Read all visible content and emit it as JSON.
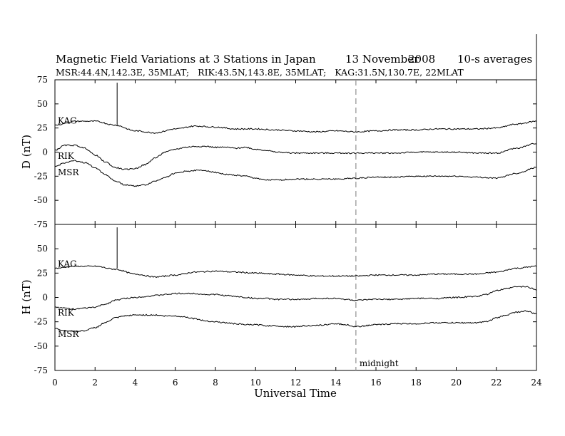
{
  "title": {
    "main": "Magnetic Field Variations at 3 Stations in Japan",
    "date_day_month": "13 November",
    "date_year": "2008",
    "averaging": "10-s averages",
    "stations_line": "MSR:44.4N,142.3E, 35MLAT;   RIK:43.5N,143.8E, 35MLAT;   KAG:31.5N,130.7E, 22MLAT"
  },
  "xlabel": "Universal Time",
  "midnight_label": "midnight",
  "midnight_ut": 15,
  "x_ticks": [
    0,
    2,
    4,
    6,
    8,
    10,
    12,
    14,
    16,
    18,
    20,
    22,
    24
  ],
  "chart_data": [
    {
      "type": "line",
      "panel": "D",
      "ylabel": "D (nT)",
      "xlim": [
        0,
        24
      ],
      "ylim": [
        -75,
        75
      ],
      "y_ticks": [
        75,
        50,
        25,
        0,
        -25,
        -50,
        -75
      ],
      "series": [
        {
          "name": "KAG",
          "x": [
            0,
            1,
            2,
            3,
            4,
            5,
            6,
            7,
            8,
            9,
            10,
            11,
            12,
            13,
            14,
            15,
            16,
            17,
            18,
            19,
            20,
            21,
            22,
            23,
            24
          ],
          "values": [
            28,
            32,
            32,
            28,
            22,
            20,
            24,
            27,
            26,
            24,
            24,
            23,
            22,
            21,
            22,
            21,
            22,
            23,
            23,
            24,
            24,
            24,
            25,
            29,
            32
          ]
        },
        {
          "name": "RIK",
          "x": [
            0,
            0.5,
            1,
            1.5,
            2,
            2.5,
            3,
            3.5,
            4,
            4.5,
            5,
            5.5,
            6,
            6.5,
            7,
            7.5,
            8,
            8.5,
            9,
            9.5,
            10,
            10.5,
            11,
            12,
            13,
            14,
            15,
            16,
            17,
            18,
            19,
            20,
            21,
            22,
            23,
            24
          ],
          "values": [
            2,
            7,
            7,
            4,
            -3,
            -10,
            -16,
            -18,
            -17,
            -13,
            -6,
            0,
            3,
            5,
            6,
            6,
            5,
            5,
            4,
            5,
            3,
            2,
            0,
            -1,
            -1,
            -1,
            -1,
            -1,
            -1,
            0,
            0,
            0,
            -1,
            -1,
            4,
            9
          ]
        },
        {
          "name": "MSR",
          "x": [
            0,
            0.5,
            1,
            1.5,
            2,
            2.5,
            3,
            3.5,
            4,
            4.5,
            5,
            5.5,
            6,
            6.5,
            7,
            7.5,
            8,
            8.5,
            9,
            9.5,
            10,
            10.5,
            11,
            12,
            13,
            14,
            15,
            16,
            17,
            18,
            19,
            20,
            21,
            22,
            23,
            24
          ],
          "values": [
            -15,
            -11,
            -9,
            -11,
            -16,
            -23,
            -30,
            -34,
            -35,
            -34,
            -30,
            -26,
            -22,
            -20,
            -19,
            -19,
            -21,
            -23,
            -24,
            -25,
            -27,
            -29,
            -29,
            -28,
            -28,
            -28,
            -27,
            -26,
            -26,
            -25,
            -25,
            -25,
            -26,
            -27,
            -22,
            -16
          ]
        }
      ],
      "annotations": [
        {
          "series": "KAG",
          "type": "spike",
          "x": 3.1,
          "from": 28,
          "to": 72
        }
      ]
    },
    {
      "type": "line",
      "panel": "H",
      "ylabel": "H (nT)",
      "xlim": [
        0,
        24
      ],
      "ylim": [
        -75,
        75
      ],
      "y_ticks": [
        75,
        50,
        25,
        0,
        -25,
        -50,
        -75
      ],
      "series": [
        {
          "name": "KAG",
          "x": [
            0,
            1,
            2,
            3,
            4,
            5,
            6,
            7,
            8,
            9,
            10,
            11,
            12,
            13,
            14,
            15,
            16,
            17,
            18,
            19,
            20,
            21,
            22,
            23,
            24
          ],
          "values": [
            30,
            32,
            32,
            29,
            24,
            21,
            23,
            26,
            27,
            26,
            25,
            24,
            23,
            22,
            22,
            22,
            23,
            23,
            23,
            24,
            24,
            24,
            26,
            30,
            32
          ]
        },
        {
          "name": "RIK",
          "x": [
            0,
            0.5,
            1,
            1.5,
            2,
            2.5,
            3,
            3.5,
            4,
            4.5,
            5,
            5.5,
            6,
            6.5,
            7,
            7.5,
            8,
            8.5,
            9,
            9.5,
            10,
            10.5,
            11,
            11.5,
            12,
            12.5,
            13,
            13.5,
            14,
            14.5,
            15,
            16,
            17,
            18,
            19,
            20,
            21,
            21.5,
            22,
            22.5,
            23,
            23.5,
            24
          ],
          "values": [
            -10,
            -11,
            -12,
            -11,
            -10,
            -7,
            -3,
            -1,
            0,
            1,
            2,
            3,
            4,
            4,
            4,
            3,
            3,
            2,
            1,
            0,
            -1,
            -1,
            -2,
            -2,
            -2,
            -2,
            -1,
            -1,
            -1,
            -2,
            -3,
            -2,
            -2,
            -1,
            -1,
            0,
            1,
            3,
            7,
            9,
            11,
            11,
            8
          ]
        },
        {
          "name": "MSR",
          "x": [
            0,
            0.5,
            1,
            1.5,
            2,
            2.5,
            3,
            3.5,
            4,
            4.5,
            5,
            5.5,
            6,
            6.5,
            7,
            7.5,
            8,
            8.5,
            9,
            9.5,
            10,
            10.5,
            11,
            11.5,
            12,
            12.5,
            13,
            13.5,
            14,
            14.5,
            15,
            16,
            17,
            18,
            19,
            20,
            21,
            21.5,
            22,
            22.5,
            23,
            23.5,
            24
          ],
          "values": [
            -32,
            -34,
            -35,
            -34,
            -31,
            -26,
            -21,
            -19,
            -18,
            -18,
            -18,
            -19,
            -19,
            -20,
            -22,
            -24,
            -25,
            -26,
            -27,
            -28,
            -28,
            -29,
            -29,
            -30,
            -30,
            -29,
            -29,
            -28,
            -27,
            -28,
            -30,
            -28,
            -27,
            -27,
            -26,
            -26,
            -26,
            -25,
            -21,
            -18,
            -15,
            -14,
            -17
          ]
        }
      ],
      "annotations": [
        {
          "series": "KAG",
          "type": "spike",
          "x": 3.1,
          "from": 30,
          "to": 72
        }
      ]
    }
  ]
}
